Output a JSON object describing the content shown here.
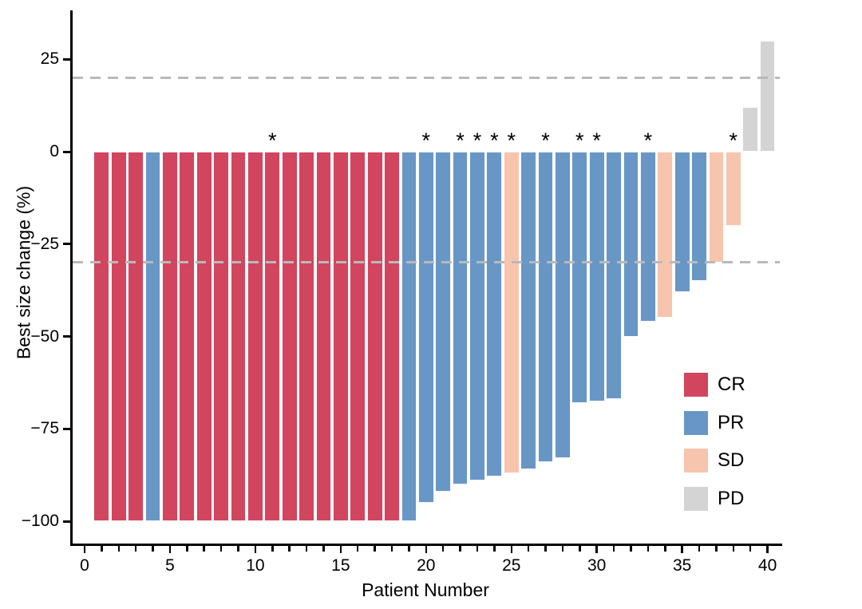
{
  "chart_data": {
    "type": "bar",
    "subtype": "waterfall",
    "title": "",
    "xlabel": "Patient Number",
    "ylabel": "Best size change (%)",
    "x_axis": {
      "min": 0,
      "max": 41,
      "major_tick_values": [
        0,
        5,
        10,
        15,
        20,
        25,
        30,
        35,
        40
      ],
      "major_tick_labels": [
        "0",
        "5",
        "10",
        "15",
        "20",
        "25",
        "30",
        "35",
        "40"
      ],
      "minor_tick_step": 1
    },
    "y_axis": {
      "min": -107,
      "max": 36,
      "tick_values": [
        25,
        0,
        -25,
        -50,
        -75,
        -100
      ],
      "tick_labels": [
        "25",
        "0",
        "−25",
        "−50",
        "−75",
        "−100"
      ]
    },
    "reference_lines": [
      {
        "y": 20,
        "style": "dashed",
        "color": "#b9b9b9"
      },
      {
        "y": -30,
        "style": "dashed",
        "color": "#b9b9b9"
      }
    ],
    "annotation_symbol": "*",
    "colors": {
      "CR": "#d2455e",
      "PR": "#6897c6",
      "SD": "#f7c4ae",
      "PD": "#d4d4d4",
      "axis": "#000000",
      "dashed_line": "#b9b9b9"
    },
    "legend": {
      "position": "inside-right",
      "entries": [
        {
          "label": "CR",
          "color": "#d2455e"
        },
        {
          "label": "PR",
          "color": "#6897c6"
        },
        {
          "label": "SD",
          "color": "#f7c4ae"
        },
        {
          "label": "PD",
          "color": "#d4d4d4"
        }
      ]
    },
    "patients": [
      {
        "patient": 1,
        "change": -100,
        "response": "CR",
        "starred": false
      },
      {
        "patient": 2,
        "change": -100,
        "response": "CR",
        "starred": false
      },
      {
        "patient": 3,
        "change": -100,
        "response": "CR",
        "starred": false
      },
      {
        "patient": 4,
        "change": -100,
        "response": "PR",
        "starred": false
      },
      {
        "patient": 5,
        "change": -100,
        "response": "CR",
        "starred": false
      },
      {
        "patient": 6,
        "change": -100,
        "response": "CR",
        "starred": false
      },
      {
        "patient": 7,
        "change": -100,
        "response": "CR",
        "starred": false
      },
      {
        "patient": 8,
        "change": -100,
        "response": "CR",
        "starred": false
      },
      {
        "patient": 9,
        "change": -100,
        "response": "CR",
        "starred": false
      },
      {
        "patient": 10,
        "change": -100,
        "response": "CR",
        "starred": false
      },
      {
        "patient": 11,
        "change": -100,
        "response": "CR",
        "starred": true
      },
      {
        "patient": 12,
        "change": -100,
        "response": "CR",
        "starred": false
      },
      {
        "patient": 13,
        "change": -100,
        "response": "CR",
        "starred": false
      },
      {
        "patient": 14,
        "change": -100,
        "response": "CR",
        "starred": false
      },
      {
        "patient": 15,
        "change": -100,
        "response": "CR",
        "starred": false
      },
      {
        "patient": 16,
        "change": -100,
        "response": "CR",
        "starred": false
      },
      {
        "patient": 17,
        "change": -100,
        "response": "CR",
        "starred": false
      },
      {
        "patient": 18,
        "change": -100,
        "response": "CR",
        "starred": false
      },
      {
        "patient": 19,
        "change": -100,
        "response": "PR",
        "starred": false
      },
      {
        "patient": 20,
        "change": -95,
        "response": "PR",
        "starred": true
      },
      {
        "patient": 21,
        "change": -92,
        "response": "PR",
        "starred": false
      },
      {
        "patient": 22,
        "change": -90,
        "response": "PR",
        "starred": true
      },
      {
        "patient": 23,
        "change": -89,
        "response": "PR",
        "starred": true
      },
      {
        "patient": 24,
        "change": -88,
        "response": "PR",
        "starred": true
      },
      {
        "patient": 25,
        "change": -87,
        "response": "SD",
        "starred": true
      },
      {
        "patient": 26,
        "change": -86,
        "response": "PR",
        "starred": false
      },
      {
        "patient": 27,
        "change": -84,
        "response": "PR",
        "starred": true
      },
      {
        "patient": 28,
        "change": -83,
        "response": "PR",
        "starred": false
      },
      {
        "patient": 29,
        "change": -68,
        "response": "PR",
        "starred": true
      },
      {
        "patient": 30,
        "change": -67.5,
        "response": "PR",
        "starred": true
      },
      {
        "patient": 31,
        "change": -67,
        "response": "PR",
        "starred": false
      },
      {
        "patient": 32,
        "change": -50,
        "response": "PR",
        "starred": false
      },
      {
        "patient": 33,
        "change": -46,
        "response": "PR",
        "starred": true
      },
      {
        "patient": 34,
        "change": -45,
        "response": "SD",
        "starred": false
      },
      {
        "patient": 35,
        "change": -38,
        "response": "PR",
        "starred": false
      },
      {
        "patient": 36,
        "change": -35,
        "response": "PR",
        "starred": false
      },
      {
        "patient": 37,
        "change": -30,
        "response": "SD",
        "starred": false
      },
      {
        "patient": 38,
        "change": -20,
        "response": "SD",
        "starred": true
      },
      {
        "patient": 39,
        "change": 12,
        "response": "PD",
        "starred": false
      },
      {
        "patient": 40,
        "change": 30,
        "response": "PD",
        "starred": false
      }
    ]
  }
}
